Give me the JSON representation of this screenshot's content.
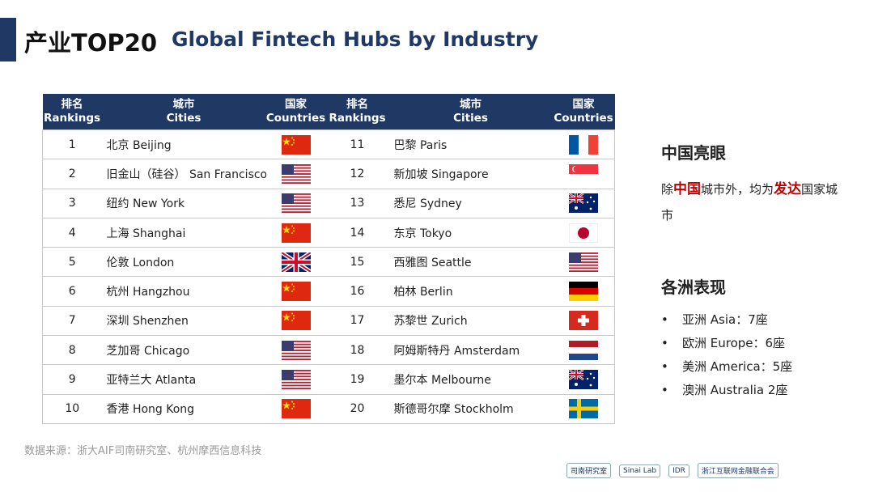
{
  "header": {
    "title": "产业TOP20",
    "subtitle": "Global Fintech Hubs by Industry"
  },
  "table": {
    "columns": [
      [
        "排名",
        "Rankings"
      ],
      [
        "城市",
        "Cities"
      ],
      [
        "国家",
        "Countries"
      ],
      [
        "排名",
        "Rankings"
      ],
      [
        "城市",
        "Cities"
      ],
      [
        "国家",
        "Countries"
      ]
    ],
    "rows": [
      {
        "rank": 1,
        "city": "北京 Beijing"
      },
      {
        "rank": 2,
        "city": "旧金山（硅谷） San Francisco"
      },
      {
        "rank": 3,
        "city": "纽约 New York"
      },
      {
        "rank": 4,
        "city": "上海 Shanghai"
      },
      {
        "rank": 5,
        "city": "伦敦 London"
      },
      {
        "rank": 6,
        "city": "杭州 Hangzhou"
      },
      {
        "rank": 7,
        "city": "深圳 Shenzhen"
      },
      {
        "rank": 8,
        "city": "芝加哥 Chicago"
      },
      {
        "rank": 9,
        "city": "亚特兰大 Atlanta"
      },
      {
        "rank": 10,
        "city": "香港 Hong Kong"
      },
      {
        "rank": 11,
        "city": "巴黎 Paris"
      },
      {
        "rank": 12,
        "city": "新加坡 Singapore"
      },
      {
        "rank": 13,
        "city": "悉尼  Sydney"
      },
      {
        "rank": 14,
        "city": "东京 Tokyo"
      },
      {
        "rank": 15,
        "city": "西雅图 Seattle"
      },
      {
        "rank": 16,
        "city": "柏林 Berlin"
      },
      {
        "rank": 17,
        "city": "苏黎世 Zurich"
      },
      {
        "rank": 18,
        "city": "阿姆斯特丹 Amsterdam"
      },
      {
        "rank": 19,
        "city": "墨尔本 Melbourne"
      },
      {
        "rank": 20,
        "city": "斯德哥尔摩 Stockholm"
      }
    ]
  },
  "sidebar": {
    "highlight_title": "中国亮眼",
    "highlight_parts": [
      "除",
      "中国",
      "城市外，均为",
      "发达",
      "国家城市"
    ],
    "continent_title": "各洲表现",
    "continents": [
      "亚洲 Asia：7座",
      "欧洲 Europe：6座",
      "美洲 America：5座",
      "澳洲 Australia 2座"
    ]
  },
  "footer": {
    "source": "数据来源：浙大AIF司南研究室、杭州摩西信息科技",
    "logos": [
      "司南研究室",
      "Sinai Lab",
      "IDR",
      "浙江互联网金融联合会"
    ]
  }
}
